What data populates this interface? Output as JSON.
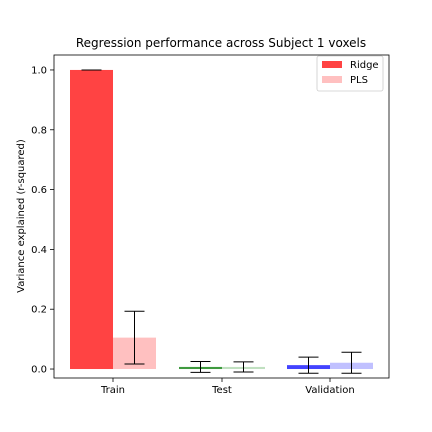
{
  "chart_data": {
    "type": "bar",
    "title": "Regression performance across Subject 1 voxels",
    "ylabel": "Variance explained (r-squared)",
    "xlabel": "",
    "categories": [
      "Train",
      "Test",
      "Validation"
    ],
    "ylim": [
      -0.03,
      1.05
    ],
    "yticks": [
      "0.0",
      "0.2",
      "0.4",
      "0.6",
      "0.8",
      "1.0"
    ],
    "grid": false,
    "legend_position": "top-right",
    "series": [
      {
        "name": "Ridge",
        "values": [
          1.0,
          0.007,
          0.013
        ],
        "errors": [
          0.0,
          0.018,
          0.027
        ],
        "colors": [
          "#ff4343",
          "#3f9a3f",
          "#4343ff"
        ],
        "legend_color": "#ff4343"
      },
      {
        "name": "PLS",
        "values": [
          0.105,
          0.007,
          0.021
        ],
        "errors": [
          0.088,
          0.017,
          0.035
        ],
        "colors": [
          "#ffc0c0",
          "#c0e0c0",
          "#c0c0ff"
        ],
        "legend_color": "#ffc0c0"
      }
    ]
  }
}
